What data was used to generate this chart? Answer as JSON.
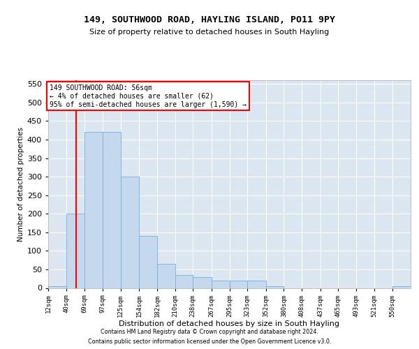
{
  "title": "149, SOUTHWOOD ROAD, HAYLING ISLAND, PO11 9PY",
  "subtitle": "Size of property relative to detached houses in South Hayling",
  "xlabel": "Distribution of detached houses by size in South Hayling",
  "ylabel": "Number of detached properties",
  "footer_line1": "Contains HM Land Registry data © Crown copyright and database right 2024.",
  "footer_line2": "Contains public sector information licensed under the Open Government Licence v3.0.",
  "annotation_line1": "149 SOUTHWOOD ROAD: 56sqm",
  "annotation_line2": "← 4% of detached houses are smaller (62)",
  "annotation_line3": "95% of semi-detached houses are larger (1,590) →",
  "red_line_x": 56,
  "bar_color": "#c5d9ee",
  "bar_edge_color": "#7bafd4",
  "background_color": "#dce6f1",
  "bin_edges": [
    12,
    40,
    69,
    97,
    125,
    154,
    182,
    210,
    238,
    267,
    295,
    323,
    352,
    380,
    408,
    437,
    465,
    493,
    521,
    550,
    578
  ],
  "bar_heights": [
    5,
    200,
    420,
    420,
    300,
    140,
    65,
    35,
    30,
    20,
    20,
    20,
    5,
    0,
    0,
    0,
    0,
    0,
    0,
    5
  ],
  "ylim": [
    0,
    560
  ],
  "yticks": [
    0,
    50,
    100,
    150,
    200,
    250,
    300,
    350,
    400,
    450,
    500,
    550
  ]
}
